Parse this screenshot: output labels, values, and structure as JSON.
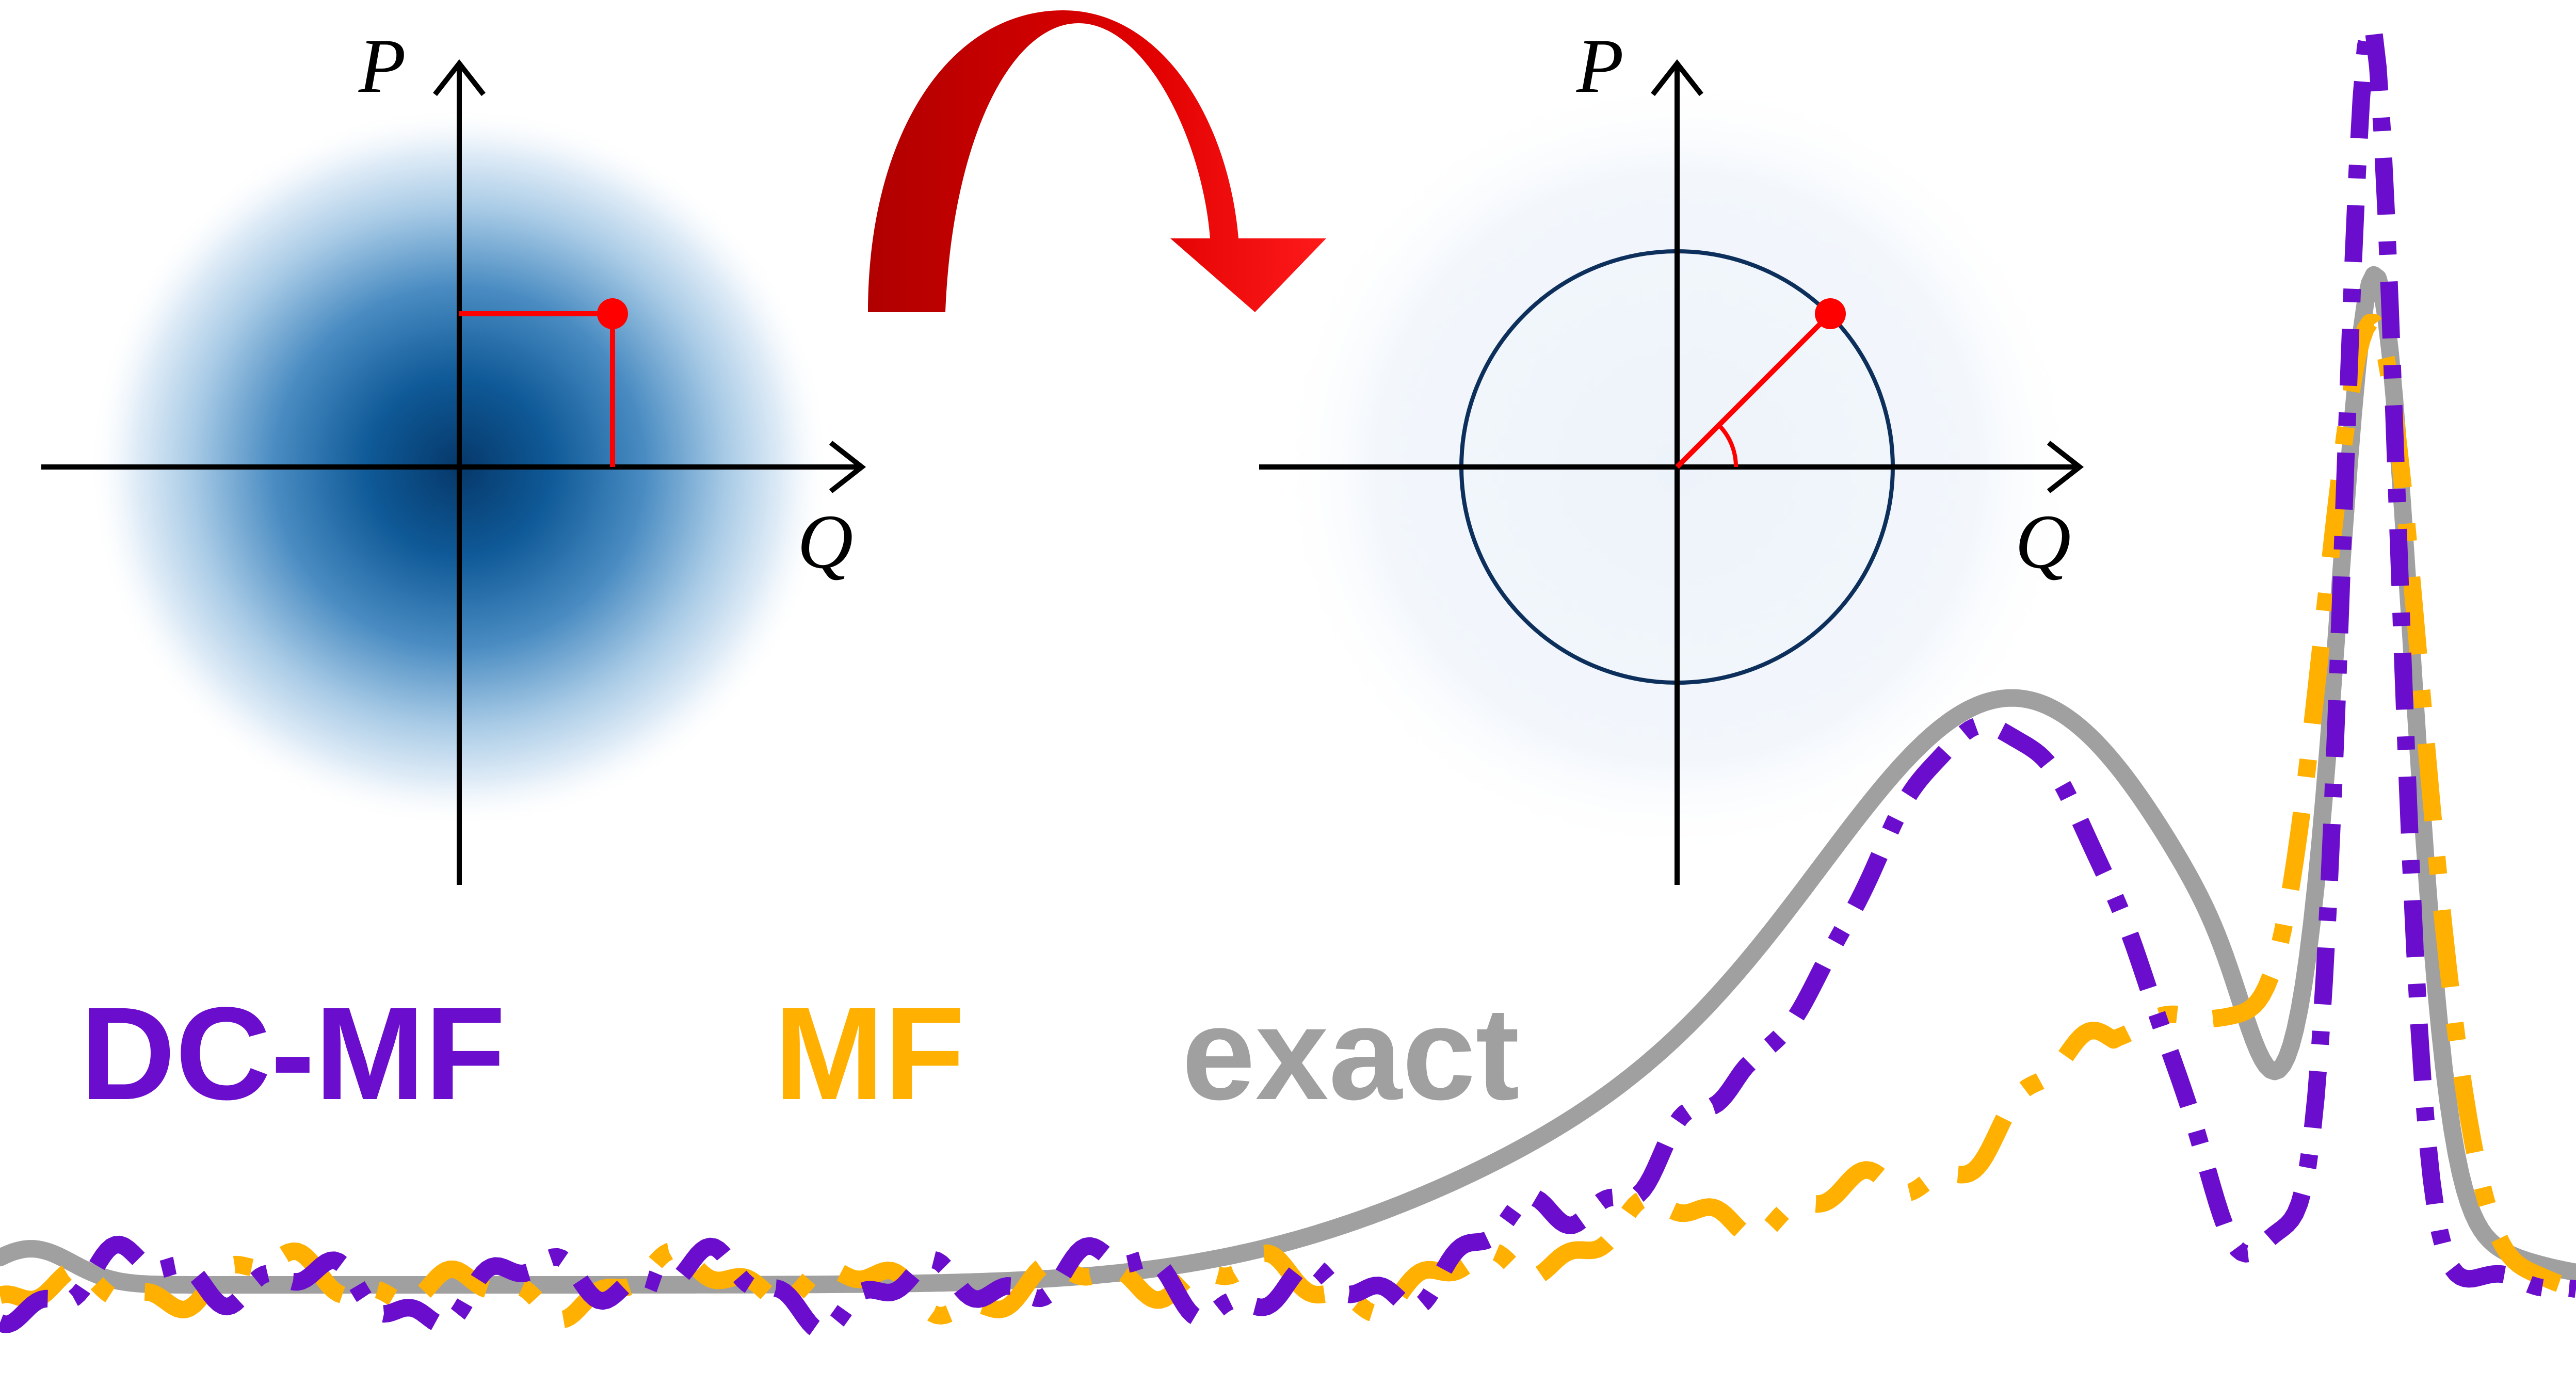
{
  "left_phase_space": {
    "x_axis_label": "Q",
    "y_axis_label": "P"
  },
  "right_phase_space": {
    "x_axis_label": "Q",
    "y_axis_label": "P"
  },
  "arrow_icon": "curved-arrow",
  "legend": [
    {
      "label": "DC-MF",
      "color": "#6a0dcc"
    },
    {
      "label": "MF",
      "color": "#ffb000"
    },
    {
      "label": "exact",
      "color": "#a0a0a0"
    }
  ],
  "colors": {
    "gaussian": "#0b4f8a",
    "circle": "#0d2f5c",
    "marker": "#ff0000",
    "arrow": "#e00000",
    "axes": "#000000"
  }
}
